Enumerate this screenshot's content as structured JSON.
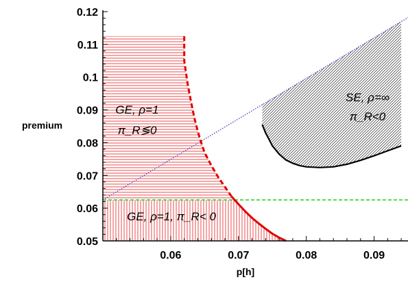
{
  "chart_data": {
    "type": "line",
    "title": "",
    "xlabel": "p[h]",
    "ylabel": "premium",
    "xlim": [
      0.05,
      0.095
    ],
    "ylim": [
      0.05,
      0.12
    ],
    "x_ticks": [
      "0.06",
      "0.07",
      "0.08",
      "0.09"
    ],
    "y_ticks": [
      "0.05",
      "0.06",
      "0.07",
      "0.08",
      "0.09",
      "0.1",
      "0.11",
      "0.12"
    ],
    "series": [
      {
        "style": "dotted",
        "color": "#4a4ad0",
        "x": [
          0.05,
          0.095
        ],
        "y": [
          0.0625,
          0.1182
        ]
      },
      {
        "style": "dashed",
        "color": "#22cc22",
        "x": [
          0.05,
          0.095
        ],
        "y": [
          0.0625,
          0.0625
        ]
      },
      {
        "style": "dashed-solid",
        "color": "#e00000",
        "x": [
          0.062,
          0.062,
          0.0625,
          0.063,
          0.0635,
          0.064,
          0.0645,
          0.065,
          0.066,
          0.067,
          0.068,
          0.069,
          0.07,
          0.071,
          0.072,
          0.073,
          0.074,
          0.075,
          0.076,
          0.077
        ],
        "y": [
          0.1125,
          0.105,
          0.098,
          0.0925,
          0.0875,
          0.0835,
          0.08,
          0.077,
          0.073,
          0.0695,
          0.0665,
          0.0635,
          0.0612,
          0.059,
          0.057,
          0.0553,
          0.0537,
          0.0522,
          0.051,
          0.05
        ]
      },
      {
        "style": "solid",
        "color": "#000000",
        "x": [
          0.0735,
          0.074,
          0.0745,
          0.075,
          0.076,
          0.077,
          0.078,
          0.079,
          0.08,
          0.082,
          0.084,
          0.086,
          0.088,
          0.09,
          0.092,
          0.094
        ],
        "y": [
          0.0855,
          0.083,
          0.081,
          0.079,
          0.0765,
          0.0747,
          0.0737,
          0.073,
          0.0726,
          0.0724,
          0.0726,
          0.0734,
          0.0746,
          0.076,
          0.0775,
          0.079
        ]
      }
    ],
    "regions": [
      {
        "name": "ge-rho1-upper",
        "hatch": "horizontal",
        "color": "#e00000",
        "label_lines": [
          "GE, ρ=1",
          "π_R≶0"
        ]
      },
      {
        "name": "ge-rho1-lower",
        "hatch": "vertical",
        "color": "#e00000",
        "label_lines": [
          "GE, ρ=1, π_R< 0"
        ]
      },
      {
        "name": "se-rho-inf",
        "hatch": "diagonal",
        "color": "#000000",
        "label_lines": [
          "SE, ρ=∞",
          "π_R<0"
        ]
      }
    ],
    "grid": false,
    "legend": "none"
  }
}
